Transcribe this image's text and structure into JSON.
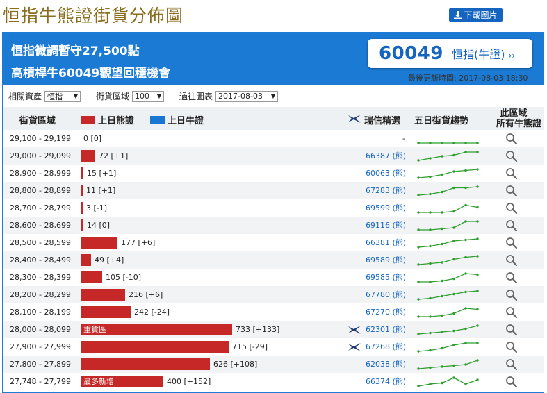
{
  "page_title": "恒指牛熊證街貨分佈圖",
  "download_label": "下載圖片",
  "banner": {
    "headline1": "恒指微調暫守27,500點",
    "headline2": "高槓桿牛60049觀望回穩機會",
    "quote_code": "60049",
    "quote_link": "恒指(牛證)",
    "updated": "最後更新時間: 2017-08-03 18:30"
  },
  "filters": {
    "asset_label": "相關資產",
    "asset_value": "恒指",
    "interval_label": "街貨區域",
    "interval_value": "100",
    "date_label": "過往圖表",
    "date_value": "2017-08-03"
  },
  "table_header": {
    "range": "街貨區域",
    "bear_legend": "上日熊證",
    "bull_legend": "上日牛證",
    "ubs": "瑞信精選",
    "trend": "五日街貨趨勢",
    "all_line1": "此區域",
    "all_line2": "所有牛熊證"
  },
  "colors": {
    "bear": "#c62828",
    "bull": "#1976d2",
    "banner": "#1a7ad4",
    "trend": "#2e9e2e"
  },
  "rows": [
    {
      "range": "29,100 - 29,199",
      "value": 0,
      "label": "0 [0]",
      "tag": "",
      "code": "-",
      "ubs": false,
      "trend": [
        0,
        0,
        0,
        0,
        0,
        0
      ]
    },
    {
      "range": "29,000 - 29,099",
      "value": 72,
      "label": "72 [+1]",
      "tag": "",
      "code": "66387 (熊)",
      "ubs": false,
      "trend": [
        0,
        2,
        4,
        5,
        8,
        8
      ]
    },
    {
      "range": "28,900 - 28,999",
      "value": 15,
      "label": "15 [+1]",
      "tag": "",
      "code": "60063 (熊)",
      "ubs": false,
      "trend": [
        0,
        1,
        3,
        6,
        7,
        8
      ]
    },
    {
      "range": "28,800 - 28,899",
      "value": 11,
      "label": "11 [+1]",
      "tag": "",
      "code": "67283 (熊)",
      "ubs": false,
      "trend": [
        0,
        1,
        3,
        7,
        7,
        8
      ]
    },
    {
      "range": "28,700 - 28,799",
      "value": 3,
      "label": "3 [-1]",
      "tag": "",
      "code": "69599 (熊)",
      "ubs": false,
      "trend": [
        0,
        0,
        0,
        1,
        7,
        5
      ]
    },
    {
      "range": "28,600 - 28,699",
      "value": 14,
      "label": "14 [0]",
      "tag": "",
      "code": "69116 (熊)",
      "ubs": false,
      "trend": [
        0,
        0,
        1,
        2,
        8,
        8
      ]
    },
    {
      "range": "28,500 - 28,599",
      "value": 177,
      "label": "177 [+6]",
      "tag": "",
      "code": "66381 (熊)",
      "ubs": false,
      "trend": [
        0,
        1,
        3,
        6,
        7,
        8
      ]
    },
    {
      "range": "28,400 - 28,499",
      "value": 49,
      "label": "49 [+4]",
      "tag": "",
      "code": "69589 (熊)",
      "ubs": false,
      "trend": [
        0,
        1,
        2,
        5,
        7,
        8
      ]
    },
    {
      "range": "28,300 - 28,399",
      "value": 105,
      "label": "105 [-10]",
      "tag": "",
      "code": "69585 (熊)",
      "ubs": false,
      "trend": [
        0,
        0,
        1,
        3,
        8,
        7
      ]
    },
    {
      "range": "28,200 - 28,299",
      "value": 216,
      "label": "216 [+6]",
      "tag": "",
      "code": "67780 (熊)",
      "ubs": false,
      "trend": [
        0,
        1,
        3,
        5,
        7,
        8
      ]
    },
    {
      "range": "28,100 - 28,199",
      "value": 242,
      "label": "242 [-24]",
      "tag": "",
      "code": "67270 (熊)",
      "ubs": false,
      "trend": [
        0,
        0,
        1,
        3,
        8,
        7
      ]
    },
    {
      "range": "28,000 - 28,099",
      "value": 733,
      "label": "733 [+133]",
      "tag": "重貨區",
      "code": "62301 (熊)",
      "ubs": true,
      "trend": [
        0,
        1,
        2,
        3,
        5,
        8
      ]
    },
    {
      "range": "27,900 - 27,999",
      "value": 715,
      "label": "715 [-29]",
      "tag": "",
      "code": "67268 (熊)",
      "ubs": true,
      "trend": [
        0,
        1,
        3,
        6,
        8,
        8
      ]
    },
    {
      "range": "27,800 - 27,899",
      "value": 626,
      "label": "626 [+108]",
      "tag": "",
      "code": "62038 (熊)",
      "ubs": false,
      "trend": [
        0,
        1,
        2,
        3,
        4,
        8
      ]
    },
    {
      "range": "27,748 - 27,799",
      "value": 400,
      "label": "400 [+152]",
      "tag": "最多新增",
      "code": "66374 (熊)",
      "ubs": false,
      "trend": [
        0,
        2,
        3,
        8,
        2,
        6
      ]
    }
  ]
}
